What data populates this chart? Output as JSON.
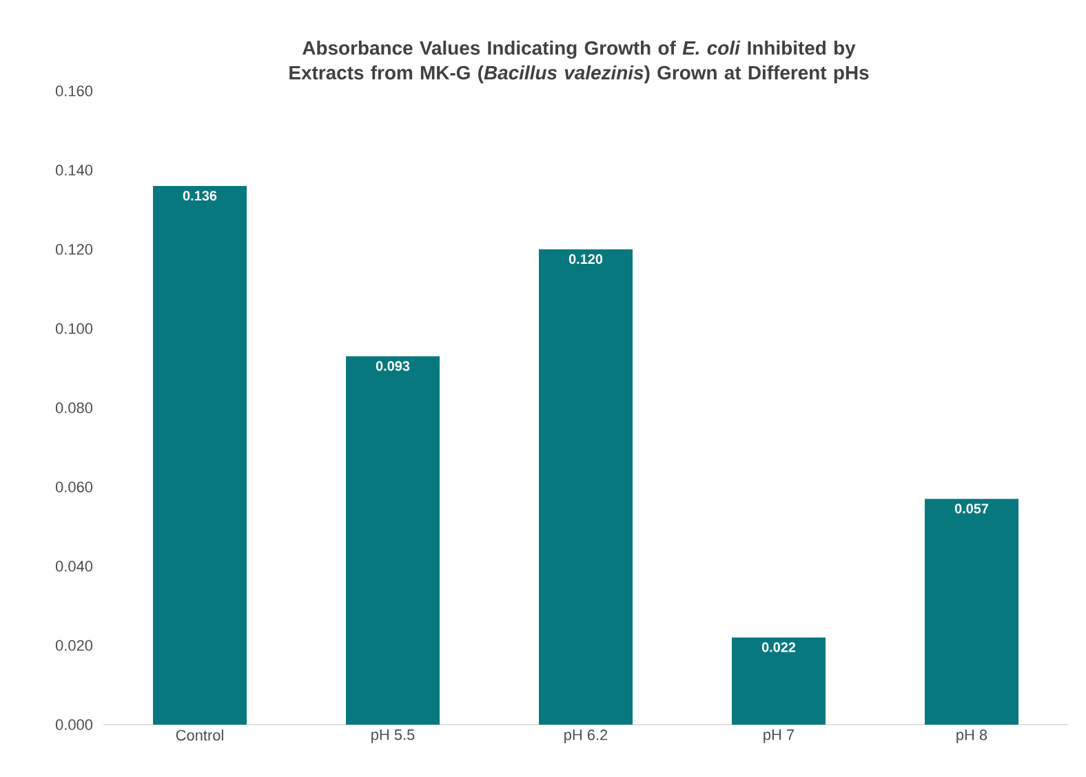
{
  "chart_data": {
    "type": "bar",
    "title": "Absorbance Values Indicating Growth of *E. coli* Inhibited by Extracts from MK-G (*Bacillus valezinis*) Grown at Different pHs",
    "categories": [
      "Control",
      "pH 5.5",
      "pH 6.2",
      "pH 7",
      "pH 8"
    ],
    "values": [
      0.136,
      0.093,
      0.12,
      0.022,
      0.057
    ],
    "value_labels": [
      "0.136",
      "0.093",
      "0.120",
      "0.022",
      "0.057"
    ],
    "color": "#08787f",
    "ylim": [
      0,
      0.16
    ],
    "yticks": [
      {
        "value": 0,
        "label": "0.000"
      },
      {
        "value": 0.02,
        "label": "0.020"
      },
      {
        "value": 0.04,
        "label": "0.040"
      },
      {
        "value": 0.06,
        "label": "0.060"
      },
      {
        "value": 0.08,
        "label": "0.080"
      },
      {
        "value": 0.1,
        "label": "0.100"
      },
      {
        "value": 0.12,
        "label": "0.120"
      },
      {
        "value": 0.14,
        "label": "0.140"
      },
      {
        "value": 0.16,
        "label": "0.160"
      }
    ],
    "grid": false
  }
}
